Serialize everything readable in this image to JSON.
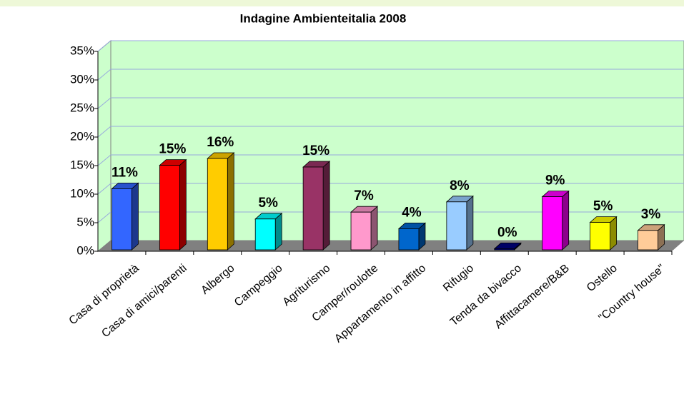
{
  "chart_data": {
    "type": "bar3d",
    "title": "Indagine Ambienteitalia 2008",
    "categories": [
      "Casa di proprietà",
      "Casa di amici/parenti",
      "Albergo",
      "Campeggio",
      "Agriturismo",
      "Camper/roulotte",
      "Appartamento in affitto",
      "Rifugio",
      "Tenda da bivacco",
      "Affittacamere/B&B",
      "Ostello",
      "\"Country house\""
    ],
    "values": [
      10.7,
      14.8,
      16,
      5.4,
      14.5,
      6.6,
      3.7,
      8.4,
      0.2,
      9.3,
      4.8,
      3.4
    ],
    "value_labels": [
      "11%",
      "15%",
      "16%",
      "5%",
      "15%",
      "7%",
      "4%",
      "8%",
      "0%",
      "9%",
      "5%",
      "3%"
    ],
    "colors": [
      "#3366ff",
      "#ff0000",
      "#ffcc00",
      "#00ffff",
      "#993366",
      "#ff99cc",
      "#0066cc",
      "#99ccff",
      "#000080",
      "#ff00ff",
      "#ffff00",
      "#ffcc99"
    ],
    "ylim": [
      0,
      35
    ],
    "yticks": [
      {
        "value": 0,
        "label": "0%"
      },
      {
        "value": 5,
        "label": "5%"
      },
      {
        "value": 10,
        "label": "10%"
      },
      {
        "value": 15,
        "label": "15%"
      },
      {
        "value": 20,
        "label": "20%"
      },
      {
        "value": 25,
        "label": "25%"
      },
      {
        "value": 30,
        "label": "30%"
      },
      {
        "value": 35,
        "label": "35%"
      }
    ],
    "grid": true
  }
}
